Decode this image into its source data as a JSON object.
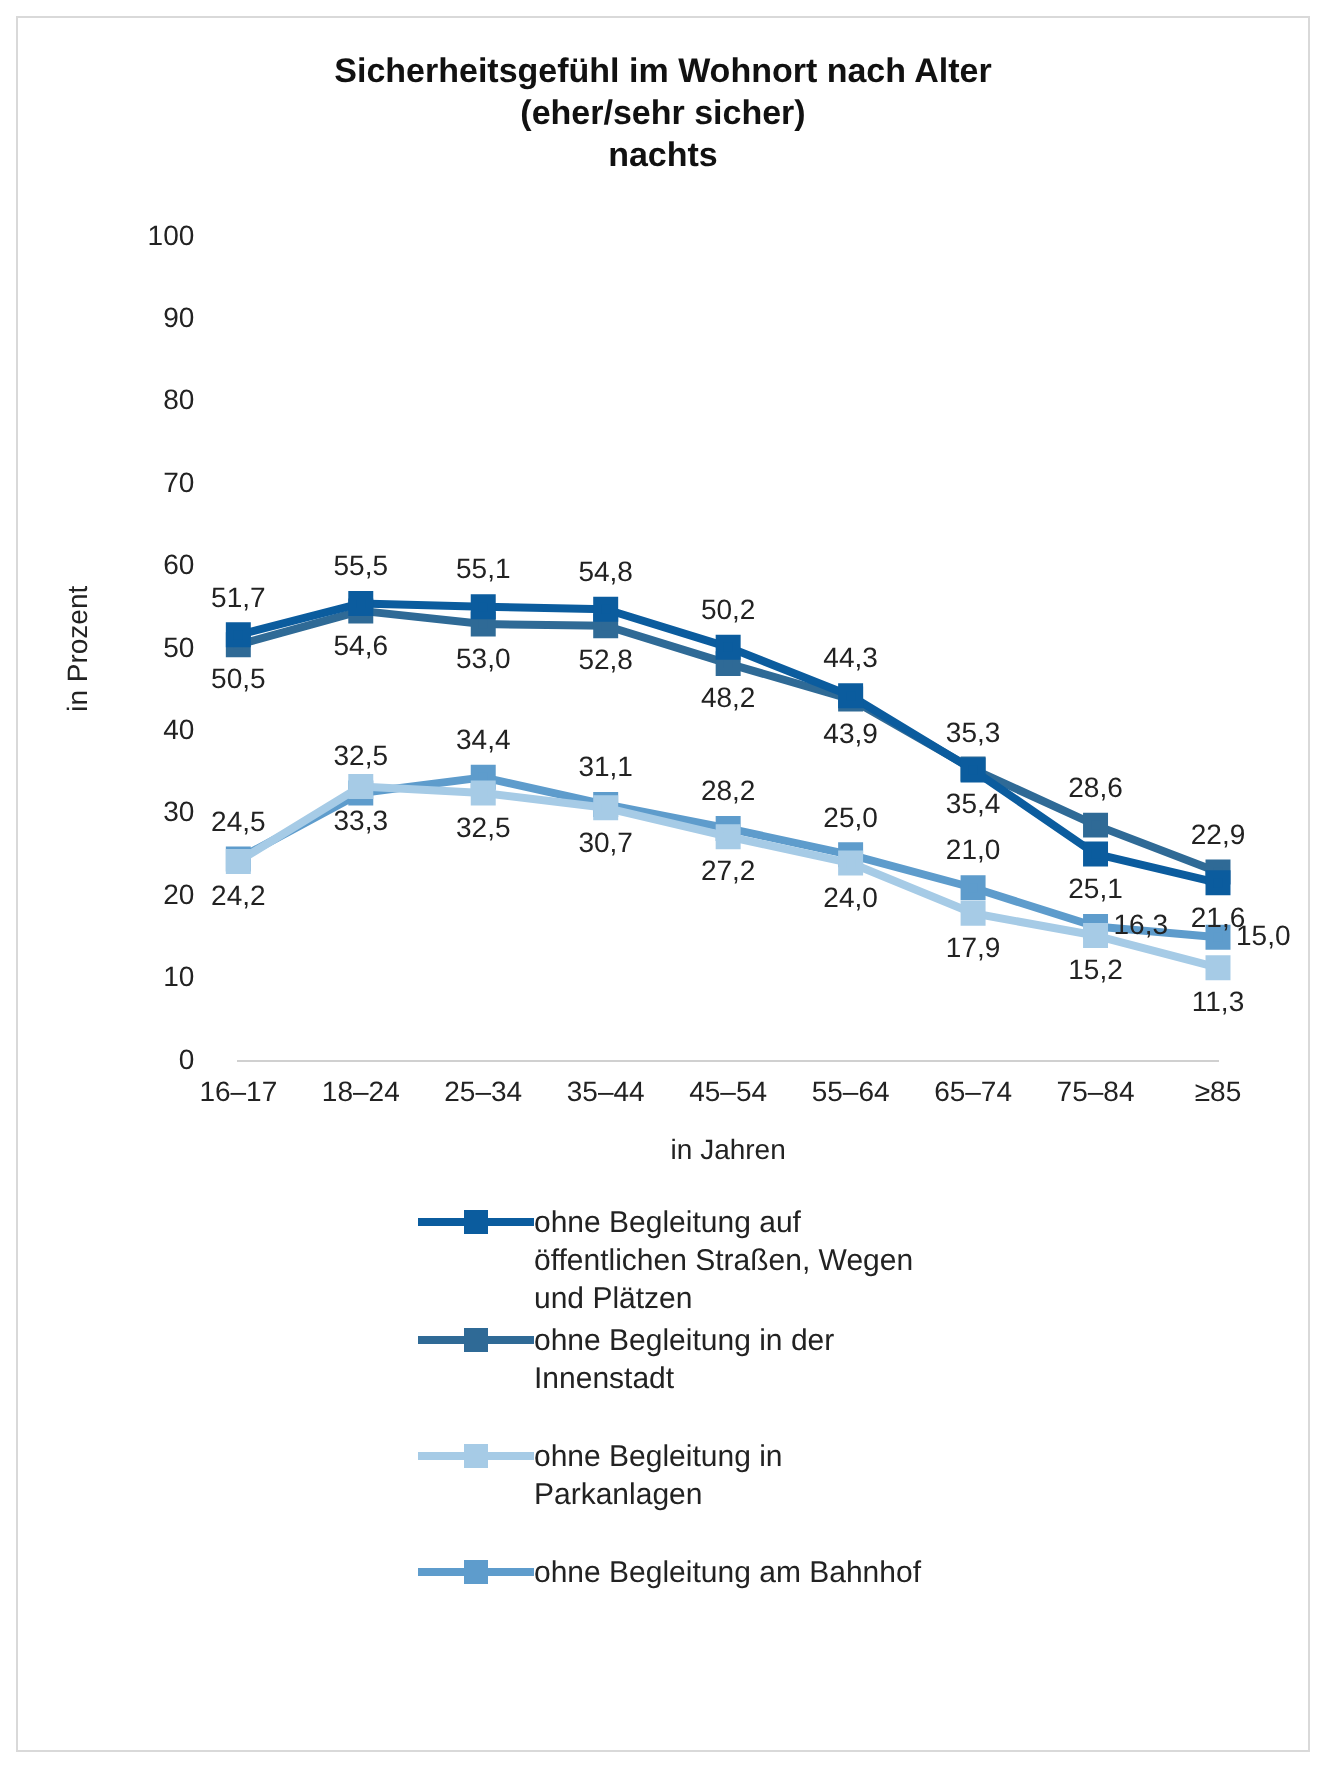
{
  "chart_data": {
    "type": "line",
    "title": "Sicherheitsgefühl im Wohnort nach Alter (eher/sehr sicher)",
    "subtitle": "nachts",
    "xlabel": "in Jahren",
    "ylabel": "in Prozent",
    "categories": [
      "16–17",
      "18–24",
      "25–34",
      "35–44",
      "45–54",
      "55–64",
      "65–74",
      "75–84",
      "≥85"
    ],
    "series": [
      {
        "name": "ohne Begleitung auf öffentlichen Straßen, Wegen und Plätzen",
        "color": "#0b5c9e",
        "values": [
          51.7,
          55.5,
          55.1,
          54.8,
          50.2,
          44.3,
          35.3,
          25.1,
          21.6
        ],
        "value_labels": [
          "51,7",
          "55,5",
          "55,1",
          "54,8",
          "50,2",
          "44,3",
          "35,3",
          "25,1",
          "21,6"
        ]
      },
      {
        "name": "ohne Begleitung in der Innenstadt",
        "color": "#2f6a96",
        "values": [
          50.5,
          54.6,
          53.0,
          52.8,
          48.2,
          43.9,
          35.4,
          28.6,
          22.9
        ],
        "value_labels": [
          "50,5",
          "54,6",
          "53,0",
          "52,8",
          "48,2",
          "43,9",
          "35,4",
          "28,6",
          "22,9"
        ]
      },
      {
        "name": "ohne Begleitung in Parkanlagen",
        "color": "#a6cbe6",
        "values": [
          24.2,
          33.3,
          32.5,
          30.7,
          27.2,
          24.0,
          17.9,
          15.2,
          11.3
        ],
        "value_labels": [
          "24,2",
          "33,3",
          "32,5",
          "30,7",
          "27,2",
          "24,0",
          "17,9",
          "15,2",
          "11,3"
        ]
      },
      {
        "name": "ohne Begleitung am Bahnhof",
        "color": "#5e9ccc",
        "values": [
          24.5,
          32.5,
          34.4,
          31.1,
          28.2,
          25.0,
          21.0,
          16.3,
          15.0
        ],
        "value_labels": [
          "24,5",
          "32,5",
          "34,4",
          "31,1",
          "28,2",
          "25,0",
          "21,0",
          "16,3",
          "15,0"
        ]
      }
    ],
    "ylim": [
      0,
      100
    ],
    "yticks": [
      0,
      10,
      20,
      30,
      40,
      50,
      60,
      70,
      80,
      90,
      100
    ],
    "grid": false,
    "legend": "bottom",
    "marker": "square",
    "line_style": "solid"
  }
}
